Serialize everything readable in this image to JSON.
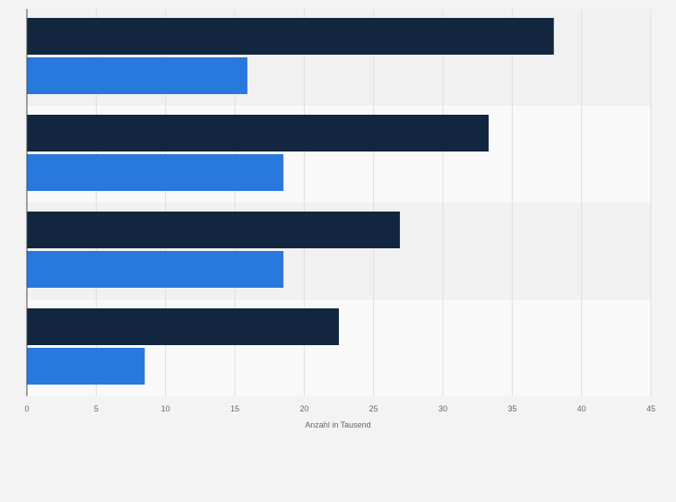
{
  "chart_data": {
    "type": "bar",
    "orientation": "horizontal",
    "title": "",
    "xlabel": "Anzahl in Tausend",
    "ylabel": "",
    "xlim": [
      0,
      45
    ],
    "xticks": [
      0,
      5,
      10,
      15,
      20,
      25,
      30,
      35,
      40,
      45
    ],
    "categories": [
      "",
      "",
      "",
      ""
    ],
    "series": [
      {
        "name": "",
        "color": "#12273f",
        "values": [
          38.0,
          33.3,
          26.9,
          22.5
        ]
      },
      {
        "name": "",
        "color": "#2878dd",
        "values": [
          15.9,
          18.5,
          18.5,
          8.5
        ]
      }
    ],
    "grid": true,
    "legend": "none"
  }
}
